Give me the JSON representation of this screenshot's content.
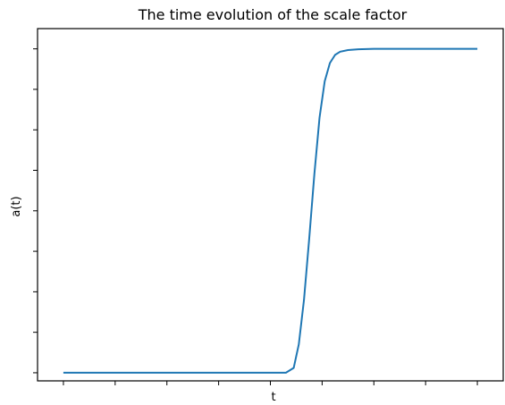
{
  "chart_data": {
    "type": "line",
    "title": "The time evolution of the scale factor",
    "xlabel": "t",
    "ylabel": "a(t)",
    "x_ticks_count": 9,
    "y_ticks_count": 9,
    "tick_labels_shown": false,
    "grid": false,
    "legend": "none",
    "xlim": [
      -0.5,
      8.5
    ],
    "ylim": [
      -0.2,
      8.5
    ],
    "series": [
      {
        "color": "#1f77b4",
        "x": [
          0.0,
          1.0,
          2.0,
          3.0,
          4.0,
          4.3,
          4.45,
          4.55,
          4.65,
          4.75,
          4.85,
          4.95,
          5.05,
          5.15,
          5.25,
          5.35,
          5.5,
          5.7,
          6.0,
          7.0,
          8.0
        ],
        "y": [
          0.0,
          0.0,
          0.0,
          0.0,
          0.0,
          0.0,
          0.12,
          0.7,
          1.8,
          3.3,
          4.9,
          6.3,
          7.2,
          7.65,
          7.85,
          7.93,
          7.97,
          7.99,
          8.0,
          8.0,
          8.0
        ]
      }
    ]
  }
}
